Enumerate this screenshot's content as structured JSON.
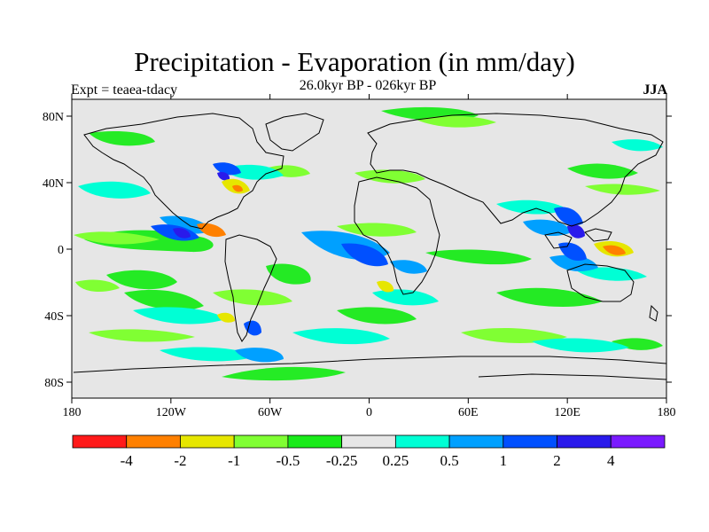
{
  "title": "Precipitation - Evaporation (in mm/day)",
  "subtitle": "26.0kyr BP - 026kyr BP",
  "experiment": "Expt = teaea-tdacy",
  "season": "JJA",
  "axes": {
    "lat_ticks": [
      "80N",
      "40N",
      "0",
      "40S",
      "80S"
    ],
    "lon_ticks": [
      "180",
      "120W",
      "60W",
      "0",
      "60E",
      "120E",
      "180"
    ]
  },
  "colorbar": {
    "colors": [
      "#ff1a1a",
      "#ff8000",
      "#e6e600",
      "#80ff33",
      "#1aeb1a",
      "#e6e6e6",
      "#00ffd5",
      "#00a0ff",
      "#0050ff",
      "#2a1aeb",
      "#7a1aff"
    ],
    "labels": [
      "-4",
      "-2",
      "-1",
      "-0.5",
      "-0.25",
      "0.25",
      "0.5",
      "1",
      "2",
      "4"
    ]
  },
  "colors": {
    "land_bg": "#e6e6e6",
    "coast": "#000000"
  }
}
